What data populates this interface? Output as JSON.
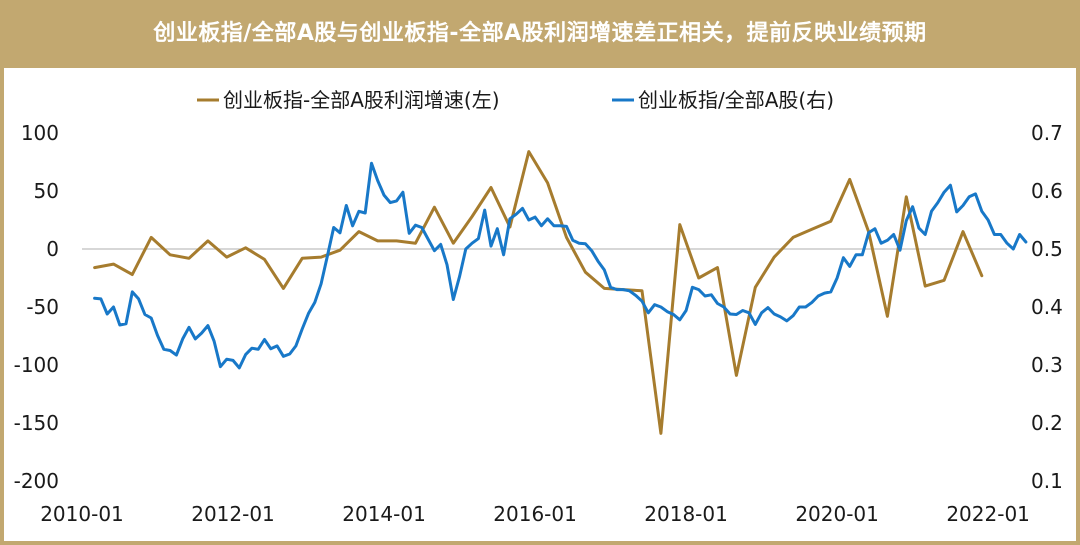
{
  "title": "创业板指/全部A股与创业板指-全部A股利润增速差正相关，提前反映业绩预期",
  "colors": {
    "header_bg": "#c2a870",
    "title_text": "#ffffff",
    "series_left": "#a67c2e",
    "series_right": "#1878c8",
    "axis": "#bfbfbf"
  },
  "chart_data": {
    "type": "line",
    "title": "创业板指/全部A股与创业板指-全部A股利润增速差正相关，提前反映业绩预期",
    "grid": false,
    "legend_position": "top-center",
    "x_start": "2010-01",
    "x_end": "2022-04",
    "x_tick_labels": [
      "2010-01",
      "2012-01",
      "2014-01",
      "2016-01",
      "2018-01",
      "2020-01",
      "2022-01"
    ],
    "y_left": {
      "range": [
        -200,
        100
      ],
      "ticks": [
        "100",
        "50",
        "0",
        "-50",
        "-100",
        "-150",
        "-200"
      ]
    },
    "y_right": {
      "range": [
        0.1,
        0.7
      ],
      "ticks": [
        "0.7",
        "0.6",
        "0.5",
        "0.4",
        "0.3",
        "0.2",
        "0.1"
      ]
    },
    "series": [
      {
        "name": "创业板指-全部A股利润增速(左)",
        "axis": "left",
        "color": "#a67c2e",
        "points": [
          [
            "2010-03",
            -16
          ],
          [
            "2010-06",
            -13
          ],
          [
            "2010-09",
            -22
          ],
          [
            "2010-12",
            10
          ],
          [
            "2011-03",
            -5
          ],
          [
            "2011-06",
            -8
          ],
          [
            "2011-09",
            7
          ],
          [
            "2011-12",
            -7
          ],
          [
            "2012-03",
            1
          ],
          [
            "2012-06",
            -9
          ],
          [
            "2012-09",
            -34
          ],
          [
            "2012-12",
            -8
          ],
          [
            "2013-03",
            -7
          ],
          [
            "2013-06",
            -1
          ],
          [
            "2013-09",
            15
          ],
          [
            "2013-12",
            7
          ],
          [
            "2014-03",
            7
          ],
          [
            "2014-06",
            5
          ],
          [
            "2014-09",
            36
          ],
          [
            "2014-12",
            5
          ],
          [
            "2015-03",
            28
          ],
          [
            "2015-06",
            53
          ],
          [
            "2015-09",
            19
          ],
          [
            "2015-12",
            84
          ],
          [
            "2016-03",
            57
          ],
          [
            "2016-06",
            10
          ],
          [
            "2016-09",
            -20
          ],
          [
            "2016-12",
            -34
          ],
          [
            "2017-03",
            -35
          ],
          [
            "2017-06",
            -36
          ],
          [
            "2017-09",
            -159
          ],
          [
            "2017-12",
            21
          ],
          [
            "2018-03",
            -25
          ],
          [
            "2018-06",
            -16
          ],
          [
            "2018-09",
            -109
          ],
          [
            "2018-12",
            -33
          ],
          [
            "2019-03",
            -7
          ],
          [
            "2019-06",
            10
          ],
          [
            "2019-09",
            17
          ],
          [
            "2019-12",
            24
          ],
          [
            "2020-03",
            60
          ],
          [
            "2020-06",
            15
          ],
          [
            "2020-09",
            -58
          ],
          [
            "2020-12",
            45
          ],
          [
            "2021-03",
            -32
          ],
          [
            "2021-06",
            -27
          ],
          [
            "2021-09",
            15
          ],
          [
            "2021-12",
            -23
          ]
        ]
      },
      {
        "name": "创业板指/全部A股(右)",
        "axis": "right",
        "color": "#1878c8",
        "points": [
          [
            "2010-03",
            0.415
          ],
          [
            "2010-04",
            0.414
          ],
          [
            "2010-05",
            0.388
          ],
          [
            "2010-06",
            0.4
          ],
          [
            "2010-07",
            0.369
          ],
          [
            "2010-08",
            0.371
          ],
          [
            "2010-09",
            0.426
          ],
          [
            "2010-10",
            0.414
          ],
          [
            "2010-11",
            0.387
          ],
          [
            "2010-12",
            0.381
          ],
          [
            "2011-01",
            0.351
          ],
          [
            "2011-02",
            0.327
          ],
          [
            "2011-03",
            0.325
          ],
          [
            "2011-04",
            0.317
          ],
          [
            "2011-05",
            0.345
          ],
          [
            "2011-06",
            0.365
          ],
          [
            "2011-07",
            0.345
          ],
          [
            "2011-08",
            0.355
          ],
          [
            "2011-09",
            0.368
          ],
          [
            "2011-10",
            0.341
          ],
          [
            "2011-11",
            0.297
          ],
          [
            "2011-12",
            0.31
          ],
          [
            "2012-01",
            0.308
          ],
          [
            "2012-02",
            0.295
          ],
          [
            "2012-03",
            0.318
          ],
          [
            "2012-04",
            0.329
          ],
          [
            "2012-05",
            0.327
          ],
          [
            "2012-06",
            0.344
          ],
          [
            "2012-07",
            0.328
          ],
          [
            "2012-08",
            0.333
          ],
          [
            "2012-09",
            0.315
          ],
          [
            "2012-10",
            0.319
          ],
          [
            "2012-11",
            0.333
          ],
          [
            "2012-12",
            0.362
          ],
          [
            "2013-01",
            0.389
          ],
          [
            "2013-02",
            0.408
          ],
          [
            "2013-03",
            0.44
          ],
          [
            "2013-04",
            0.488
          ],
          [
            "2013-05",
            0.537
          ],
          [
            "2013-06",
            0.528
          ],
          [
            "2013-07",
            0.575
          ],
          [
            "2013-08",
            0.54
          ],
          [
            "2013-09",
            0.565
          ],
          [
            "2013-10",
            0.562
          ],
          [
            "2013-11",
            0.648
          ],
          [
            "2013-12",
            0.618
          ],
          [
            "2014-01",
            0.593
          ],
          [
            "2014-02",
            0.58
          ],
          [
            "2014-03",
            0.583
          ],
          [
            "2014-04",
            0.598
          ],
          [
            "2014-05",
            0.527
          ],
          [
            "2014-06",
            0.541
          ],
          [
            "2014-07",
            0.537
          ],
          [
            "2014-08",
            0.517
          ],
          [
            "2014-09",
            0.497
          ],
          [
            "2014-10",
            0.508
          ],
          [
            "2014-11",
            0.473
          ],
          [
            "2014-12",
            0.413
          ],
          [
            "2015-01",
            0.453
          ],
          [
            "2015-02",
            0.5
          ],
          [
            "2015-03",
            0.51
          ],
          [
            "2015-04",
            0.518
          ],
          [
            "2015-05",
            0.567
          ],
          [
            "2015-06",
            0.505
          ],
          [
            "2015-07",
            0.535
          ],
          [
            "2015-08",
            0.49
          ],
          [
            "2015-09",
            0.552
          ],
          [
            "2015-10",
            0.56
          ],
          [
            "2015-11",
            0.57
          ],
          [
            "2015-12",
            0.55
          ],
          [
            "2016-01",
            0.555
          ],
          [
            "2016-02",
            0.54
          ],
          [
            "2016-03",
            0.552
          ],
          [
            "2016-04",
            0.54
          ],
          [
            "2016-05",
            0.54
          ],
          [
            "2016-06",
            0.539
          ],
          [
            "2016-07",
            0.515
          ],
          [
            "2016-08",
            0.51
          ],
          [
            "2016-09",
            0.509
          ],
          [
            "2016-10",
            0.497
          ],
          [
            "2016-11",
            0.479
          ],
          [
            "2016-12",
            0.464
          ],
          [
            "2017-01",
            0.434
          ],
          [
            "2017-02",
            0.43
          ],
          [
            "2017-03",
            0.43
          ],
          [
            "2017-04",
            0.428
          ],
          [
            "2017-05",
            0.42
          ],
          [
            "2017-06",
            0.41
          ],
          [
            "2017-07",
            0.39
          ],
          [
            "2017-08",
            0.404
          ],
          [
            "2017-09",
            0.4
          ],
          [
            "2017-10",
            0.392
          ],
          [
            "2017-11",
            0.387
          ],
          [
            "2017-12",
            0.378
          ],
          [
            "2018-01",
            0.394
          ],
          [
            "2018-02",
            0.434
          ],
          [
            "2018-03",
            0.43
          ],
          [
            "2018-04",
            0.419
          ],
          [
            "2018-05",
            0.421
          ],
          [
            "2018-06",
            0.406
          ],
          [
            "2018-07",
            0.4
          ],
          [
            "2018-08",
            0.388
          ],
          [
            "2018-09",
            0.387
          ],
          [
            "2018-10",
            0.394
          ],
          [
            "2018-11",
            0.39
          ],
          [
            "2018-12",
            0.37
          ],
          [
            "2019-01",
            0.39
          ],
          [
            "2019-02",
            0.399
          ],
          [
            "2019-03",
            0.388
          ],
          [
            "2019-04",
            0.383
          ],
          [
            "2019-05",
            0.376
          ],
          [
            "2019-06",
            0.385
          ],
          [
            "2019-07",
            0.4
          ],
          [
            "2019-08",
            0.4
          ],
          [
            "2019-09",
            0.408
          ],
          [
            "2019-10",
            0.419
          ],
          [
            "2019-11",
            0.424
          ],
          [
            "2019-12",
            0.426
          ],
          [
            "2020-01",
            0.45
          ],
          [
            "2020-02",
            0.485
          ],
          [
            "2020-03",
            0.47
          ],
          [
            "2020-04",
            0.49
          ],
          [
            "2020-05",
            0.49
          ],
          [
            "2020-06",
            0.528
          ],
          [
            "2020-07",
            0.535
          ],
          [
            "2020-08",
            0.51
          ],
          [
            "2020-09",
            0.515
          ],
          [
            "2020-10",
            0.525
          ],
          [
            "2020-11",
            0.498
          ],
          [
            "2020-12",
            0.549
          ],
          [
            "2021-01",
            0.573
          ],
          [
            "2021-02",
            0.536
          ],
          [
            "2021-03",
            0.525
          ],
          [
            "2021-04",
            0.565
          ],
          [
            "2021-05",
            0.58
          ],
          [
            "2021-06",
            0.598
          ],
          [
            "2021-07",
            0.61
          ],
          [
            "2021-08",
            0.564
          ],
          [
            "2021-09",
            0.575
          ],
          [
            "2021-10",
            0.59
          ],
          [
            "2021-11",
            0.595
          ],
          [
            "2021-12",
            0.565
          ],
          [
            "2022-01",
            0.55
          ],
          [
            "2022-02",
            0.525
          ],
          [
            "2022-03",
            0.525
          ],
          [
            "2022-04",
            0.51
          ],
          [
            "2022-05",
            0.5
          ],
          [
            "2022-06",
            0.525
          ],
          [
            "2022-07",
            0.512
          ]
        ]
      }
    ]
  }
}
